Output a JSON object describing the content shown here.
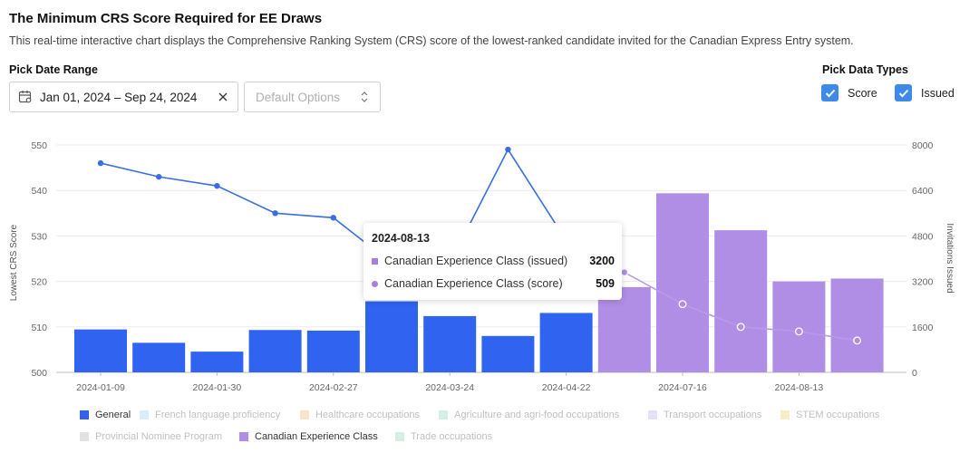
{
  "header": {
    "title": "The Minimum CRS Score Required for EE Draws",
    "subtitle": "This real-time interactive chart displays the Comprehensive Ranking System (CRS) score of the lowest-ranked candidate invited for the Canadian Express Entry system."
  },
  "controls": {
    "date_range_label": "Pick Date Range",
    "date_range_value": "Jan 01, 2024 – Sep 24, 2024",
    "options_placeholder": "Default Options",
    "data_types_label": "Pick Data Types",
    "score_label": "Score",
    "issued_label": "Issued",
    "score_checked": true,
    "issued_checked": true
  },
  "colors": {
    "general": "#2f63f0",
    "cec": "#b08ee6",
    "score_line": "#3b6fe0",
    "cec_line": "#b99ae8",
    "checkbox": "#3d8ae8"
  },
  "chart_data": {
    "type": "bar",
    "ylabel": "Lowest CRS Score",
    "ylabel_right": "Invitations Issued",
    "ylim": [
      500,
      550
    ],
    "ylim_right": [
      0,
      8000
    ],
    "yticks": [
      500,
      510,
      520,
      530,
      540,
      550
    ],
    "yticks_right": [
      0,
      1600,
      3200,
      4800,
      6400,
      8000
    ],
    "xtick_labels": [
      "2024-01-09",
      "2024-01-30",
      "2024-02-27",
      "2024-03-24",
      "2024-04-22",
      "2024-07-16",
      "2024-08-13"
    ],
    "grid": true,
    "series": [
      {
        "name": "General",
        "program": "general",
        "metric": "issued",
        "values": [
          1510,
          1040,
          730,
          1490,
          1470,
          2500,
          1980,
          1280,
          2090,
          null,
          null,
          null,
          null,
          null
        ]
      },
      {
        "name": "Canadian Experience Class",
        "program": "cec",
        "metric": "issued",
        "values": [
          null,
          null,
          null,
          null,
          null,
          null,
          null,
          null,
          null,
          3000,
          6300,
          5000,
          3200,
          3300
        ]
      },
      {
        "name": "General",
        "program": "general",
        "metric": "score",
        "values": [
          546,
          543,
          541,
          535,
          534,
          524,
          524,
          549,
          529,
          null,
          null,
          null,
          null,
          null
        ]
      },
      {
        "name": "Canadian Experience Class",
        "program": "cec",
        "metric": "score",
        "values": [
          null,
          null,
          null,
          null,
          null,
          null,
          null,
          null,
          null,
          522,
          515,
          510,
          509,
          507
        ]
      }
    ],
    "legend": {
      "placement": "bottom",
      "items": [
        {
          "name": "General",
          "color": "#2f63f0",
          "active": true
        },
        {
          "name": "French language proficiency",
          "color": "#d9eef9",
          "active": false
        },
        {
          "name": "Healthcare occupations",
          "color": "#f9e6cc",
          "active": false
        },
        {
          "name": "Agriculture and agri-food occupations",
          "color": "#d6efe4",
          "active": false
        },
        {
          "name": "Transport occupations",
          "color": "#e5e2f5",
          "active": false
        },
        {
          "name": "STEM occupations",
          "color": "#f7edc9",
          "active": false
        },
        {
          "name": "Provincial Nominee Program",
          "color": "#e2e2e2",
          "active": false
        },
        {
          "name": "Canadian Experience Class",
          "color": "#b08ee6",
          "active": true
        },
        {
          "name": "Trade occupations",
          "color": "#d6efe4",
          "active": false
        }
      ]
    },
    "tooltip": {
      "date": "2024-08-13",
      "rows": [
        {
          "label": "Canadian Experience Class (issued)",
          "value": "3200"
        },
        {
          "label": "Canadian Experience Class (score)",
          "value": "509"
        }
      ]
    }
  }
}
